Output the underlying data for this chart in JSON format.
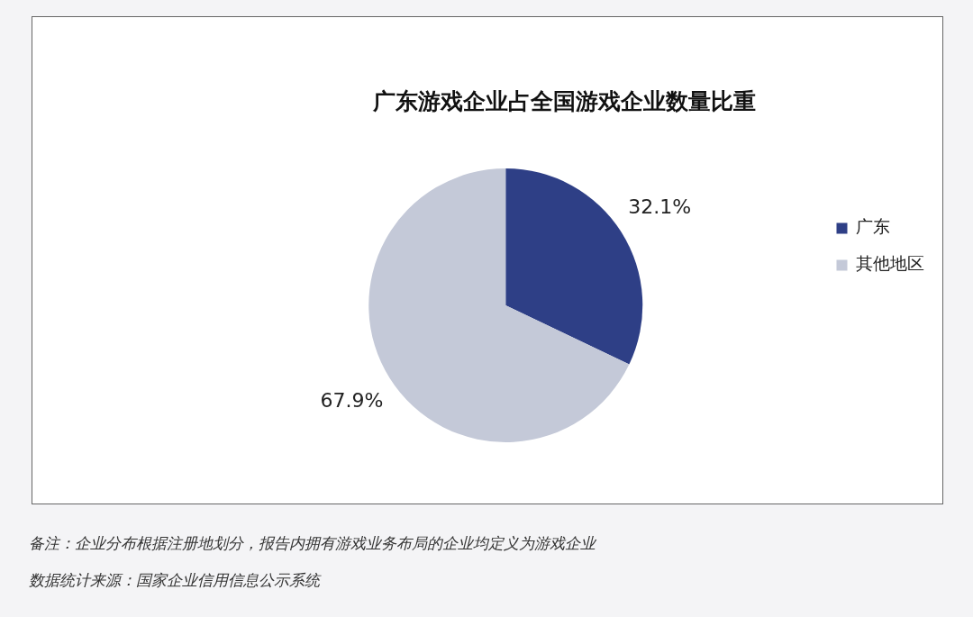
{
  "chart_data": {
    "type": "pie",
    "title": "广东游戏企业占全国游戏企业数量比重",
    "categories": [
      "广东",
      "其他地区"
    ],
    "values": [
      32.1,
      67.9
    ],
    "colors": [
      "#2e3f86",
      "#c4c9d8"
    ],
    "value_labels": [
      "32.1%",
      "67.9%"
    ],
    "legend": "right",
    "annotations": [
      "备注：企业分布根据注册地划分，报告内拥有游戏业务布局的企业均定义为游戏企业",
      "数据统计来源：国家企业信用信息公示系统"
    ]
  }
}
